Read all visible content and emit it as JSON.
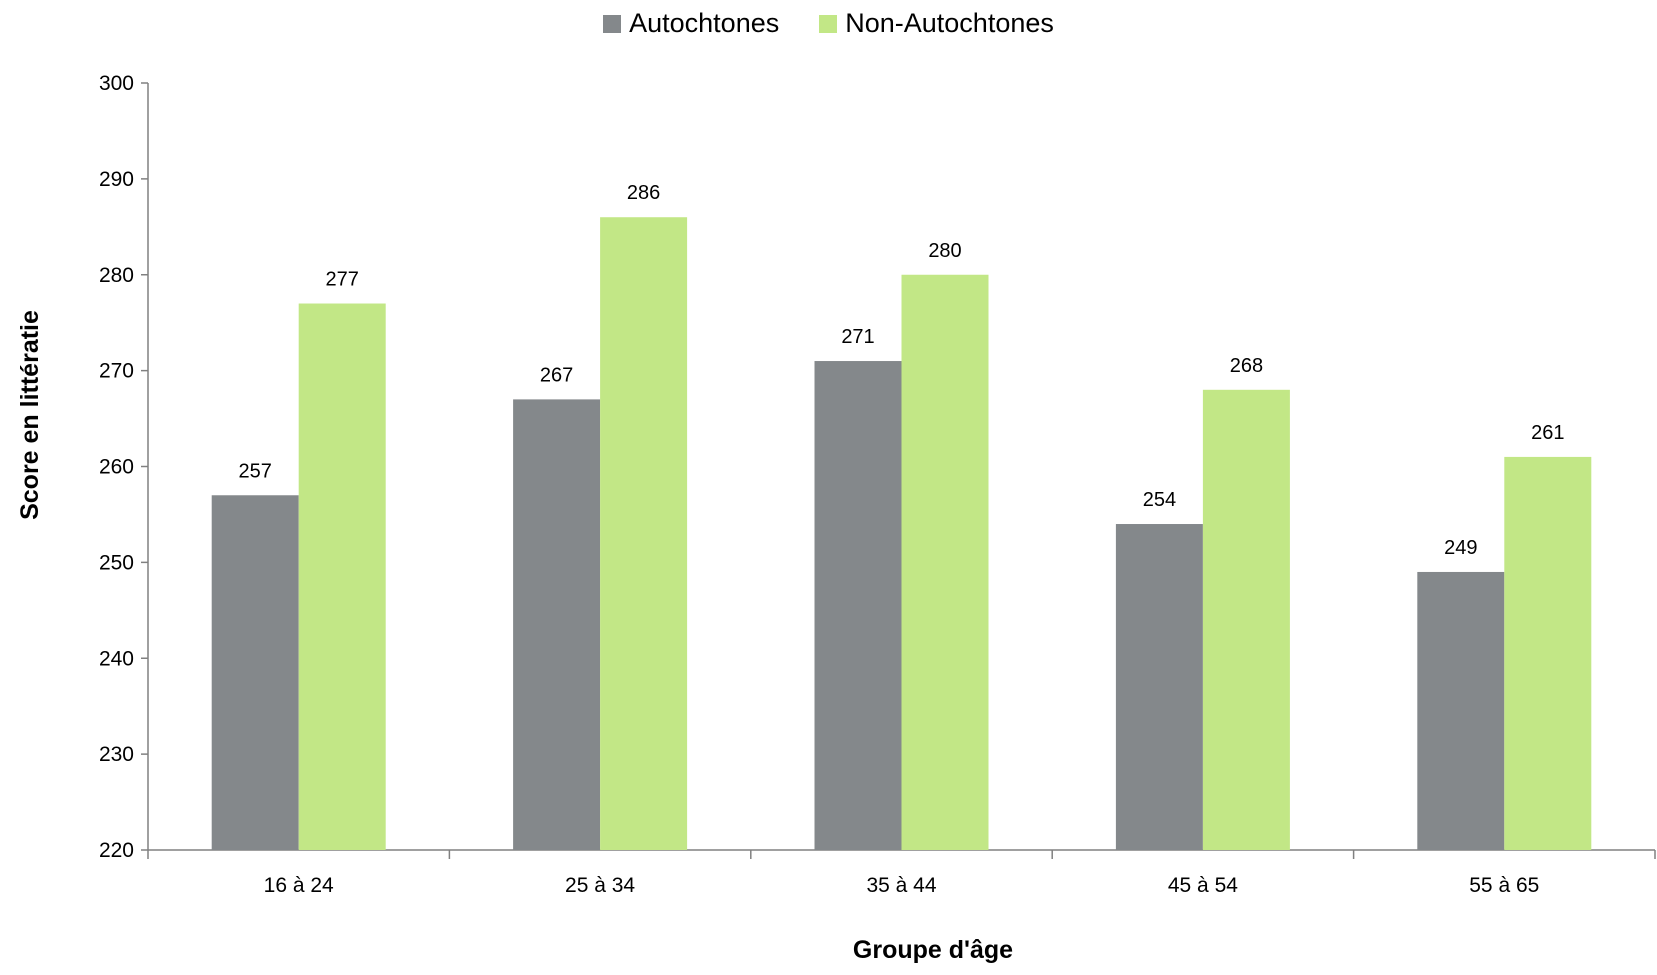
{
  "chart_data": {
    "type": "bar",
    "title": "",
    "xlabel": "Groupe d'âge",
    "ylabel": "Score en littératie",
    "categories": [
      "16 à 24",
      "25 à 34",
      "35 à 44",
      "45 à 54",
      "55 à 65"
    ],
    "series": [
      {
        "name": "Autochtones",
        "color": "#84888b",
        "values": [
          257,
          267,
          271,
          254,
          249
        ],
        "labels": [
          "257",
          "267",
          "271",
          "254",
          "249"
        ]
      },
      {
        "name": "Non-Autochtones",
        "color": "#c2e786",
        "values": [
          277,
          286,
          280,
          268,
          261
        ],
        "labels": [
          "277",
          "286",
          "280",
          "268",
          "261"
        ]
      }
    ],
    "ylim": [
      220,
      300
    ],
    "yticks": [
      220,
      230,
      240,
      250,
      260,
      270,
      280,
      290,
      300
    ],
    "grid": false,
    "legend_position": "top-center"
  }
}
